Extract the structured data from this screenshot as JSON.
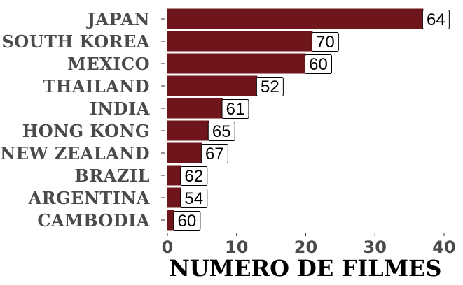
{
  "chart_data": {
    "type": "bar",
    "orientation": "horizontal",
    "categories": [
      "JAPAN",
      "SOUTH KOREA",
      "MEXICO",
      "THAILAND",
      "INDIA",
      "HONG KONG",
      "NEW ZEALAND",
      "BRAZIL",
      "ARGENTINA",
      "CAMBODIA"
    ],
    "values": [
      37,
      21,
      20,
      13,
      8,
      6,
      5,
      2,
      2,
      1
    ],
    "data_labels": [
      "64",
      "70",
      "60",
      "52",
      "61",
      "65",
      "67",
      "62",
      "54",
      "60"
    ],
    "xlabel": "NUMERO DE FILMES",
    "ylabel": "",
    "xlim": [
      0,
      40
    ],
    "xticks": [
      0,
      10,
      20,
      30,
      40
    ],
    "xtick_labels": [
      "0",
      "10",
      "20",
      "30",
      "40"
    ],
    "grid": false,
    "bar_color": "#6e161b"
  }
}
